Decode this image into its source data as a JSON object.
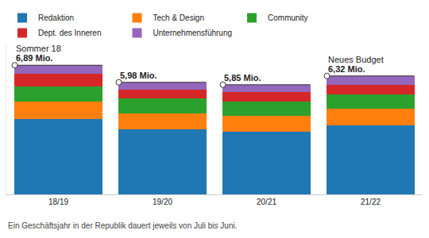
{
  "chart_data": {
    "type": "bar",
    "stacked": true,
    "categories": [
      "18/19",
      "19/20",
      "20/21",
      "21/22"
    ],
    "series": [
      {
        "name": "Redaktion",
        "color": "#1f77b4",
        "values": [
          4.03,
          3.46,
          3.36,
          3.69
        ]
      },
      {
        "name": "Tech & Design",
        "color": "#ff7f0e",
        "values": [
          0.91,
          0.86,
          0.83,
          0.87
        ]
      },
      {
        "name": "Community",
        "color": "#2ca02c",
        "values": [
          0.83,
          0.79,
          0.76,
          0.79
        ]
      },
      {
        "name": "Dept. des Inneren",
        "color": "#d62728",
        "values": [
          0.65,
          0.47,
          0.5,
          0.5
        ]
      },
      {
        "name": "Unternehmensführung",
        "color": "#9467bd",
        "values": [
          0.47,
          0.4,
          0.4,
          0.47
        ]
      }
    ],
    "totals": [
      6.89,
      5.98,
      5.85,
      6.32
    ],
    "total_labels": [
      "6,89 Mio.",
      "5,98 Mio.",
      "5,85 Mio.",
      "6,32 Mio."
    ],
    "annotations": [
      {
        "category": "18/19",
        "text": "Sommer 18"
      },
      {
        "category": "21/22",
        "text": "Neues Budget"
      }
    ],
    "footnote": "Ein Geschäftsjahr in der Republik dauert jeweils von Juli bis Juni.",
    "ylim": [
      0,
      8
    ],
    "tick_labels": "x",
    "grid": false,
    "legend": "top"
  }
}
